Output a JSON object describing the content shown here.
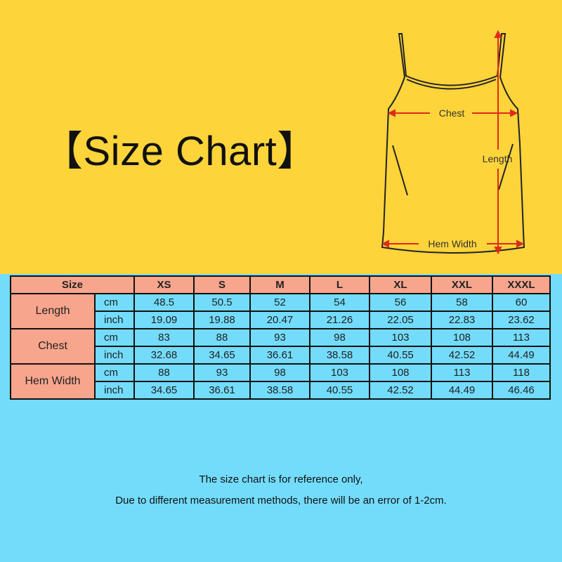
{
  "title": "【Size Chart】",
  "colors": {
    "top_background": "#fdd43a",
    "bottom_background": "#73dcfb",
    "header_cell": "#f7a58d",
    "arrow": "#e02a1a"
  },
  "diagram": {
    "chest_label": "Chest",
    "length_label": "Length",
    "hem_label": "Hem Width"
  },
  "table": {
    "size_header": "Size",
    "sizes": [
      "XS",
      "S",
      "M",
      "L",
      "XL",
      "XXL",
      "XXXL"
    ],
    "rows": [
      {
        "label": "Length",
        "units": [
          {
            "unit": "cm",
            "values": [
              "48.5",
              "50.5",
              "52",
              "54",
              "56",
              "58",
              "60"
            ]
          },
          {
            "unit": "inch",
            "values": [
              "19.09",
              "19.88",
              "20.47",
              "21.26",
              "22.05",
              "22.83",
              "23.62"
            ]
          }
        ]
      },
      {
        "label": "Chest",
        "units": [
          {
            "unit": "cm",
            "values": [
              "83",
              "88",
              "93",
              "98",
              "103",
              "108",
              "113"
            ]
          },
          {
            "unit": "inch",
            "values": [
              "32.68",
              "34.65",
              "36.61",
              "38.58",
              "40.55",
              "42.52",
              "44.49"
            ]
          }
        ]
      },
      {
        "label": "Hem Width",
        "units": [
          {
            "unit": "cm",
            "values": [
              "88",
              "93",
              "98",
              "103",
              "108",
              "113",
              "118"
            ]
          },
          {
            "unit": "inch",
            "values": [
              "34.65",
              "36.61",
              "38.58",
              "40.55",
              "42.52",
              "44.49",
              "46.46"
            ]
          }
        ]
      }
    ]
  },
  "notes": [
    "The size chart is for reference only,",
    "Due to different measurement methods, there will be an error of 1-2cm."
  ]
}
